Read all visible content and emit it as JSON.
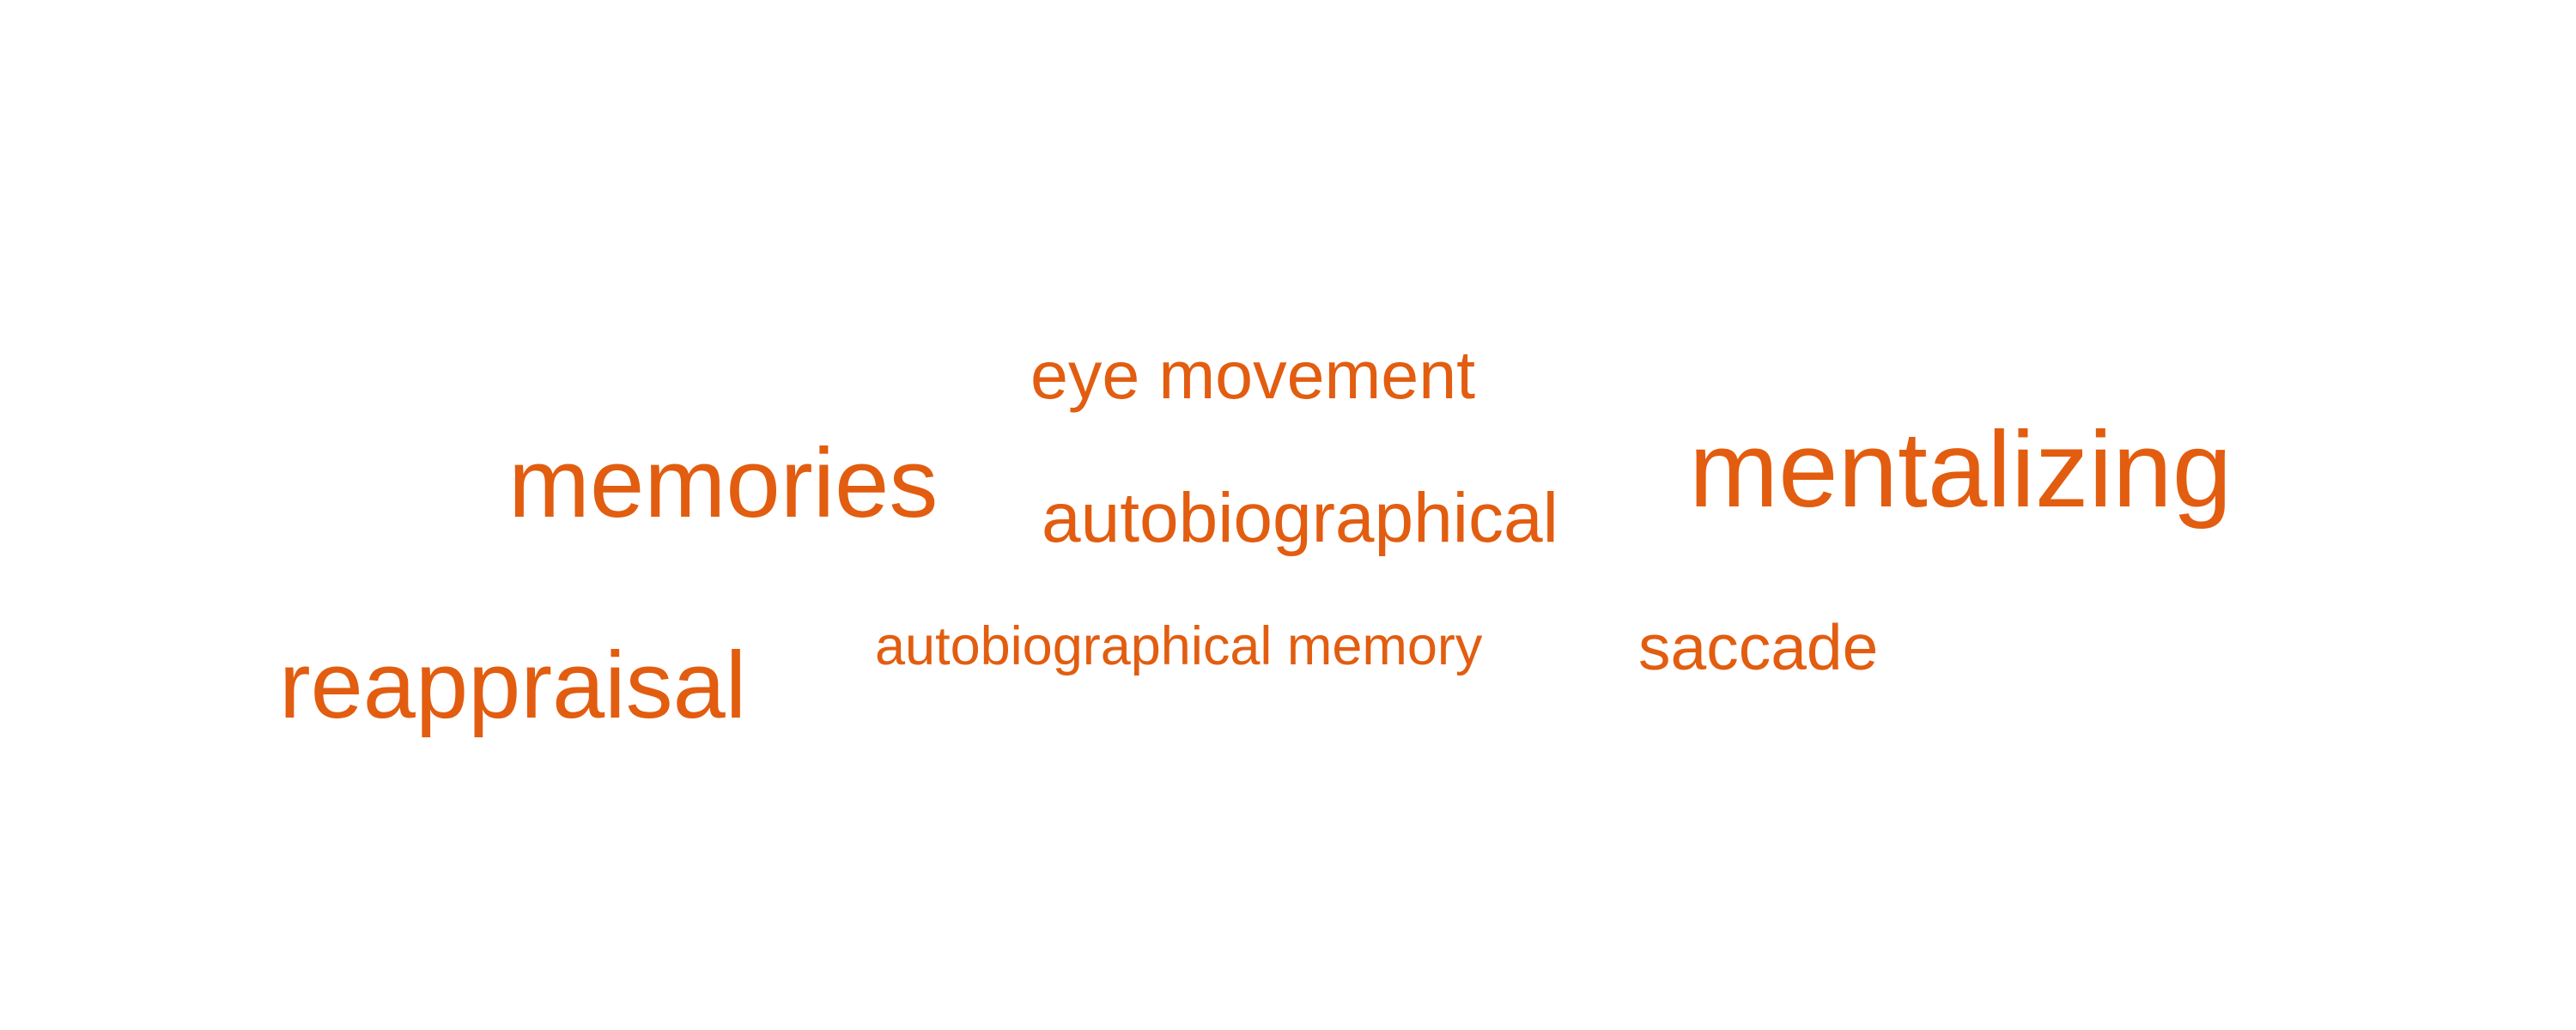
{
  "cloud": {
    "color": "#e25d10",
    "words": [
      {
        "id": "eye-movement",
        "text": "eye movement"
      },
      {
        "id": "memories",
        "text": "memories"
      },
      {
        "id": "autobiographical",
        "text": "autobiographical"
      },
      {
        "id": "mentalizing",
        "text": "mentalizing"
      },
      {
        "id": "autobiographical-memory",
        "text": "autobiographical memory"
      },
      {
        "id": "saccade",
        "text": "saccade"
      },
      {
        "id": "reappraisal",
        "text": "reappraisal"
      }
    ]
  }
}
